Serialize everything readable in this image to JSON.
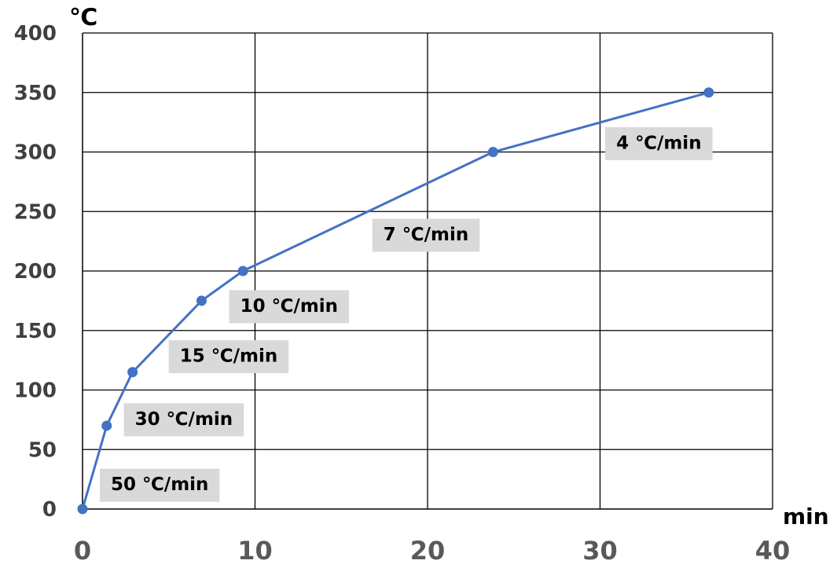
{
  "chart_data": {
    "type": "line",
    "xlabel": "min",
    "ylabel": "℃",
    "xlim": [
      0,
      40
    ],
    "ylim": [
      0,
      400
    ],
    "xticks": [
      0,
      10,
      20,
      30,
      40
    ],
    "yticks": [
      0,
      50,
      100,
      150,
      200,
      250,
      300,
      350,
      400
    ],
    "grid": true,
    "series": [
      {
        "color": "#4472c4",
        "points": [
          {
            "x": 0,
            "y": 0
          },
          {
            "x": 1.4,
            "y": 70
          },
          {
            "x": 2.9,
            "y": 115
          },
          {
            "x": 6.9,
            "y": 175
          },
          {
            "x": 9.3,
            "y": 200
          },
          {
            "x": 23.8,
            "y": 300
          },
          {
            "x": 36.3,
            "y": 350
          }
        ]
      }
    ],
    "annotations": [
      {
        "text": "50 ℃/min",
        "x": 1.0,
        "y": 20
      },
      {
        "text": "30 ℃/min",
        "x": 2.4,
        "y": 75
      },
      {
        "text": "15 ℃/min",
        "x": 5.0,
        "y": 128
      },
      {
        "text": "10 ℃/min",
        "x": 8.5,
        "y": 170
      },
      {
        "text": "7 ℃/min",
        "x": 16.8,
        "y": 230
      },
      {
        "text": "4 ℃/min",
        "x": 30.3,
        "y": 307
      }
    ]
  },
  "colors": {
    "line": "#4472c4",
    "grid": "#000000",
    "label_background": "#d9d9d9"
  }
}
